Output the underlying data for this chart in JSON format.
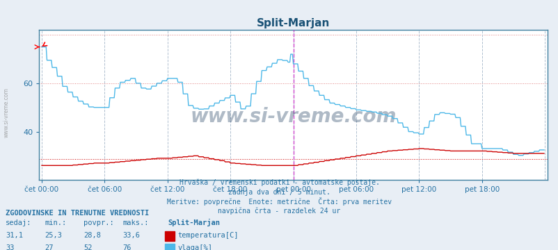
{
  "title": "Split-Marjan",
  "title_color": "#1a5276",
  "bg_color": "#e8eef5",
  "plot_bg_color": "#ffffff",
  "text_color": "#2471a3",
  "grid_color_h": "#e0b0b0",
  "grid_color_v": "#c0d0e0",
  "temp_color": "#cc0000",
  "humidity_color": "#4db8e8",
  "temp_avg": 28.8,
  "temp_min": 25.3,
  "temp_max": 33.6,
  "temp_current": 31.1,
  "hum_avg": 52,
  "hum_min": 27,
  "hum_max": 76,
  "hum_current": 33,
  "xlabel_ticks": [
    "čet 00:00",
    "čet 06:00",
    "čet 12:00",
    "čet 18:00",
    "pet 00:00",
    "pet 06:00",
    "pet 12:00",
    "pet 18:00"
  ],
  "ylim": [
    20,
    80
  ],
  "yticks": [
    40,
    60
  ],
  "subtitle_lines": [
    "Hrvaška / vremenski podatki - avtomatske postaje.",
    "zadnja dva dni / 5 minut.",
    "Meritve: povprečne  Enote: metrične  Črta: prva meritev",
    "navpična črta - razdelek 24 ur"
  ],
  "legend_title": "ZGODOVINSKE IN TRENUTNE VREDNOSTI",
  "legend_headers": [
    "sedaj:",
    "min.:",
    "povpr.:",
    "maks.:"
  ],
  "legend_temp_vals": [
    "31,1",
    "25,3",
    "28,8",
    "33,6"
  ],
  "legend_hum_vals": [
    "33",
    "27",
    "52",
    "76"
  ],
  "legend_station": "Split-Marjan",
  "legend_temp_label": "temperatura[C]",
  "legend_hum_label": "vlaga[%]",
  "watermark": "www.si-vreme.com",
  "watermark_color": "#1a3a5c",
  "site_label": "www.si-vreme.com"
}
